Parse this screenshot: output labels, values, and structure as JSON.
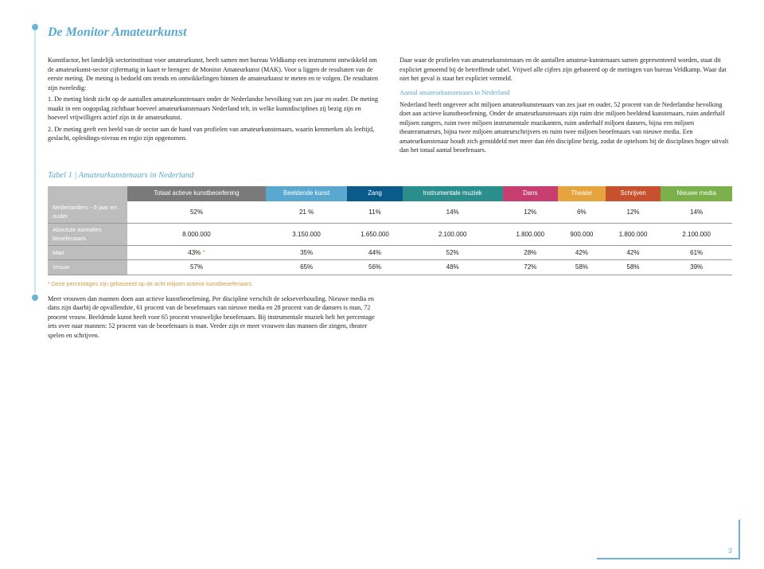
{
  "title": "De Monitor Amateurkunst",
  "page_number": "3",
  "left_column": {
    "p1": "Kunstfactor, het landelijk sectorinstituut voor amateurkunst, heeft samen met bureau Veldkamp een instrument ontwikkeld om de amateurkunst-sector cijfermatig in kaart te brengen: de Monitor Amateurkunst (MAK). Voor u liggen de resultaten van de eerste meting. De meting is bedoeld om trends en ontwikkelingen binnen de amateurkunst te meten en te volgen. De resultaten zijn tweeledig:",
    "p2": "1. De meting biedt zicht op de aantallen amateurkunstenaars onder de Nederlandse bevolking van zes jaar en ouder. De meting maakt in een oogopslag zichtbaar hoeveel amateurkunstenaars Nederland telt, in welke kunstdisciplines zij bezig zijn en hoeveel vrijwilligers actief zijn in de amateurkunst.",
    "p3": "2. De meting geeft een beeld van de sector aan de hand van profielen van amateurkunstenaars, waarin kenmerken als leeftijd, geslacht, opleidings-niveau en regio zijn opgenomen."
  },
  "right_column": {
    "p1": "Daar waar de profielen van amateurkunstenaars en de aantallen amateur-kunstenaars samen gepresenteerd worden, staat dit expliciet genoemd bij de betreffende tabel. Vrijwel alle cijfers zijn gebaseerd op de metingen van bureau Veldkamp. Waar dat niet het geval is staat het expliciet vermeld.",
    "subhead": "Aantal amateurkunstenaars in Nederland",
    "p2": "Nederland heeft ongeveer acht miljoen amateurkunstenaars van zes jaar en ouder, 52 procent van de Nederlandse bevolking doet aan actieve kunstbeoefening. Onder de amateurkunstenaars zijn ruim drie miljoen beeldend kunstenaars, ruim anderhalf miljoen zangers, ruim twee miljoen instrumentale muzikanten, ruim anderhalf miljoen dansers, bijna een miljoen theateramateurs, bijna twee miljoen amateurschrijvers en ruim twee miljoen beoefenaars van nieuwe media. Een amateurkunstenaar houdt zich gemiddeld met meer dan één discipline bezig, zodat de optelsom bij de disciplines hoger uitvalt dan het totaal aantal beoefenaars."
  },
  "table": {
    "title": "Tabel 1 | Amateurkunstenaars in Nederland",
    "headers": [
      {
        "label": "Totaal actieve kunstbeoefening",
        "color": "#7a7a7a"
      },
      {
        "label": "Beeldende kunst",
        "color": "#5aa8cf"
      },
      {
        "label": "Zang",
        "color": "#0b5b8a"
      },
      {
        "label": "Instrumentale muziek",
        "color": "#2a8f8c"
      },
      {
        "label": "Dans",
        "color": "#c73f6e"
      },
      {
        "label": "Theater",
        "color": "#e6a43e"
      },
      {
        "label": "Schrijven",
        "color": "#c7512e"
      },
      {
        "label": "Nieuwe media",
        "color": "#7bb04a"
      }
    ],
    "rows": [
      {
        "label": "Nederlanders - 6 jaar en ouder",
        "cells": [
          "52%",
          "21 %",
          "11%",
          "14%",
          "12%",
          "6%",
          "12%",
          "14%"
        ]
      },
      {
        "label": "Absolute aantallen beoefenaars",
        "cells": [
          "8.000.000",
          "3.150.000",
          "1.650.000",
          "2.100.000",
          "1.800.000",
          "900.000",
          "1.800.000",
          "2.100.000"
        ]
      },
      {
        "label": "Man",
        "cells": [
          "43%",
          "35%",
          "44%",
          "52%",
          "28%",
          "42%",
          "42%",
          "61%"
        ]
      },
      {
        "label": "Vrouw",
        "cells": [
          "57%",
          "65%",
          "56%",
          "48%",
          "72%",
          "58%",
          "58%",
          "39%"
        ]
      }
    ],
    "footnote": "* Deze percentages zijn gebaseerd op de acht miljoen actieve kunstbeoefenaars."
  },
  "bottom_text": "Meer vrouwen dan mannen doen aan actieve kunstbeoefening. Per discipline verschilt de sekseverhouding. Nieuwe media en dans zijn daarbij de opvallendste, 61 procent van de beoefenaars van nieuwe media en 28 procent van de dansers is man, 72 procent vrouw. Beeldende kunst heeft voor 65 procent vrouwelijke beoefenaars. Bij instrumentale muziek helt het percentage iets over naar mannen: 52 procent van de beoefenaars is man. Verder zijn er meer vrouwen dan mannen die zingen, theater spelen en schrijven."
}
